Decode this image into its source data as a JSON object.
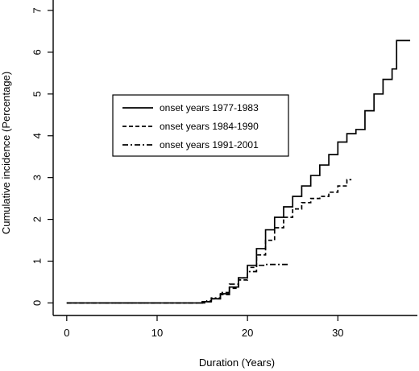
{
  "chart_data": {
    "type": "line",
    "title": "",
    "xlabel": "Duration (Years)",
    "ylabel": "Cumulative incidence (Percentage)",
    "xlim": [
      -1.5,
      38.8
    ],
    "ylim": [
      -0.3,
      7.25
    ],
    "xticks": [
      0,
      10,
      20,
      30
    ],
    "yticks": [
      0,
      1,
      2,
      3,
      4,
      5,
      6,
      7
    ],
    "grid": false,
    "legend_position": "upper-left",
    "series": [
      {
        "name": "onset years 1977-1983",
        "style": "solid",
        "x": [
          0,
          14,
          15,
          16,
          17,
          18,
          19,
          20,
          21,
          22,
          23,
          24,
          25,
          26,
          27,
          28,
          29,
          30,
          31,
          32,
          33,
          34,
          35,
          36,
          36.5,
          36.5,
          38
        ],
        "y": [
          0,
          0,
          0.03,
          0.1,
          0.22,
          0.38,
          0.6,
          0.9,
          1.3,
          1.75,
          2.05,
          2.3,
          2.55,
          2.8,
          3.05,
          3.3,
          3.55,
          3.85,
          4.05,
          4.15,
          4.6,
          5.0,
          5.35,
          5.6,
          5.9,
          6.28,
          6.28
        ]
      },
      {
        "name": "onset years 1984-1990",
        "style": "dashed",
        "x": [
          0,
          14,
          15,
          16,
          17,
          18,
          19,
          20,
          21,
          22,
          23,
          24,
          25,
          26,
          27,
          28,
          29,
          30,
          31,
          31.5
        ],
        "y": [
          0,
          0,
          0.03,
          0.1,
          0.2,
          0.35,
          0.55,
          0.85,
          1.15,
          1.5,
          1.8,
          2.05,
          2.25,
          2.4,
          2.5,
          2.55,
          2.65,
          2.8,
          2.95,
          2.95
        ]
      },
      {
        "name": "onset years 1991-2001",
        "style": "dashdot",
        "x": [
          0,
          14.5,
          15.5,
          16,
          17,
          18,
          19,
          20,
          21,
          22,
          23,
          24.5
        ],
        "y": [
          0,
          0,
          0.05,
          0.12,
          0.25,
          0.45,
          0.6,
          0.75,
          0.9,
          0.92,
          0.92,
          0.92
        ]
      }
    ]
  }
}
